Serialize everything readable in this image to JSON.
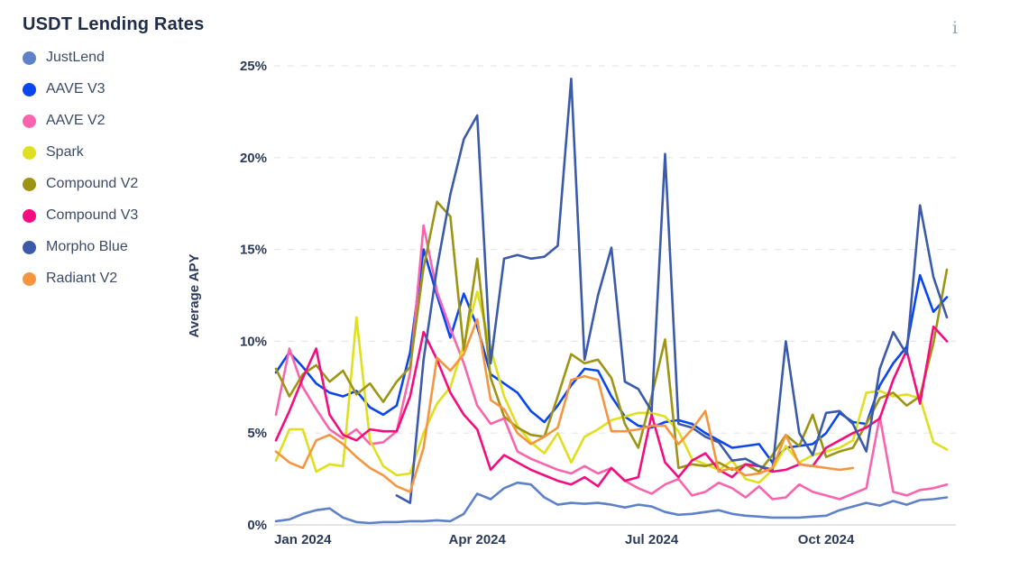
{
  "header": {
    "title": "USDT Lending Rates",
    "info_icon": "i"
  },
  "legend": [
    {
      "label": "JustLend",
      "color": "#5e81c9"
    },
    {
      "label": "AAVE V3",
      "color": "#0a46f0"
    },
    {
      "label": "AAVE V2",
      "color": "#f864ad"
    },
    {
      "label": "Spark",
      "color": "#e0df1f"
    },
    {
      "label": "Compound V2",
      "color": "#9d9413"
    },
    {
      "label": "Compound V3",
      "color": "#f50c7f"
    },
    {
      "label": "Morpho Blue",
      "color": "#3b5aa9"
    },
    {
      "label": "Radiant V2",
      "color": "#f6953f"
    }
  ],
  "axis": {
    "y_label": "Average APY",
    "y_tick_labels": [
      "0%",
      "5%",
      "10%",
      "15%",
      "20%",
      "25%"
    ],
    "x_tick_labels": [
      "Jan 2024",
      "Apr 2024",
      "Jul 2024",
      "Oct 2024"
    ]
  },
  "chart_data": {
    "type": "line",
    "title": "USDT Lending Rates",
    "ylabel": "Average APY",
    "ylim": [
      0,
      25
    ],
    "y_ticks": [
      0,
      5,
      10,
      15,
      20,
      25
    ],
    "grid": "horizontal-dashed",
    "legend_position": "left",
    "x_unit": "week (mid-Dec 2023 to early-Dec 2024, 51 weekly points)",
    "x_tick_week_index": [
      2,
      15,
      28,
      41
    ],
    "x_tick_labels": [
      "Jan 2024",
      "Apr 2024",
      "Jul 2024",
      "Oct 2024"
    ],
    "series": [
      {
        "name": "JustLend",
        "color": "#5e81c9",
        "values": [
          0.2,
          0.3,
          0.6,
          0.8,
          0.9,
          0.4,
          0.15,
          0.1,
          0.15,
          0.15,
          0.2,
          0.2,
          0.25,
          0.2,
          0.6,
          1.7,
          1.4,
          2.0,
          2.3,
          2.2,
          1.5,
          1.1,
          1.2,
          1.15,
          1.2,
          1.1,
          0.95,
          1.1,
          1.0,
          0.7,
          0.55,
          0.6,
          0.7,
          0.8,
          0.6,
          0.5,
          0.45,
          0.4,
          0.4,
          0.4,
          0.45,
          0.5,
          0.8,
          1.0,
          1.2,
          1.05,
          1.3,
          1.1,
          1.35,
          1.4,
          1.5
        ]
      },
      {
        "name": "AAVE V3",
        "color": "#0a46f0",
        "values": [
          8.3,
          9.4,
          8.6,
          7.7,
          7.2,
          7.0,
          7.3,
          6.4,
          6.0,
          6.5,
          9.4,
          15.0,
          12.5,
          10.2,
          12.6,
          10.8,
          8.2,
          7.7,
          7.2,
          6.2,
          5.6,
          6.5,
          7.6,
          8.5,
          8.4,
          7.0,
          5.9,
          5.4,
          5.3,
          5.6,
          5.7,
          5.5,
          5.0,
          4.6,
          4.2,
          4.3,
          4.4,
          3.4,
          4.2,
          4.3,
          4.4,
          5.0,
          6.1,
          5.6,
          5.5,
          7.6,
          8.8,
          9.7,
          13.6,
          11.6,
          12.4
        ]
      },
      {
        "name": "AAVE V2",
        "color": "#f864ad",
        "values": [
          6.0,
          9.6,
          7.5,
          6.3,
          5.2,
          4.7,
          5.2,
          4.4,
          4.5,
          5.1,
          8.3,
          16.3,
          12.7,
          10.7,
          8.8,
          6.5,
          5.5,
          5.8,
          4.0,
          3.6,
          3.3,
          3.0,
          2.8,
          3.2,
          2.8,
          3.1,
          2.4,
          2.0,
          1.7,
          2.2,
          2.5,
          1.6,
          1.8,
          2.3,
          2.0,
          1.5,
          2.1,
          1.4,
          1.5,
          2.2,
          1.8,
          1.6,
          1.4,
          1.7,
          2.0,
          5.9,
          1.8,
          1.6,
          1.9,
          2.0,
          2.2
        ]
      },
      {
        "name": "Spark",
        "color": "#e0df1f",
        "values": [
          3.5,
          5.2,
          5.2,
          2.9,
          3.3,
          3.2,
          11.3,
          4.6,
          3.2,
          2.7,
          2.8,
          5.0,
          6.6,
          7.5,
          9.8,
          12.7,
          9.6,
          7.0,
          5.4,
          4.5,
          3.9,
          5.0,
          3.4,
          4.8,
          5.2,
          5.7,
          5.9,
          6.1,
          6.1,
          5.9,
          5.1,
          3.6,
          3.3,
          3.0,
          3.5,
          2.5,
          2.3,
          3.0,
          4.3,
          3.4,
          3.8,
          4.0,
          4.2,
          4.6,
          7.2,
          7.3,
          7.0,
          7.1,
          6.9,
          4.5,
          4.1
        ]
      },
      {
        "name": "Compound V2",
        "color": "#9d9413",
        "values": [
          8.5,
          7.0,
          8.2,
          8.7,
          7.8,
          8.4,
          7.1,
          7.7,
          6.7,
          7.8,
          8.6,
          14.0,
          17.6,
          16.8,
          9.5,
          14.5,
          8.0,
          5.9,
          5.3,
          4.9,
          4.8,
          7.0,
          9.3,
          8.8,
          9.0,
          8.0,
          5.5,
          4.2,
          7.0,
          10.1,
          3.1,
          3.3,
          3.2,
          3.4,
          3.0,
          3.3,
          2.9,
          3.8,
          4.9,
          4.3,
          6.0,
          3.7,
          4.0,
          4.2,
          5.5,
          6.9,
          7.2,
          6.5,
          7.0,
          9.9,
          13.9
        ]
      },
      {
        "name": "Compound V3",
        "color": "#f50c7f",
        "values": [
          4.6,
          6.2,
          8.0,
          9.6,
          6.0,
          4.9,
          4.6,
          5.2,
          5.1,
          5.1,
          7.0,
          10.5,
          9.0,
          7.2,
          6.0,
          5.2,
          3.0,
          3.8,
          3.4,
          3.0,
          2.7,
          2.4,
          2.2,
          2.6,
          2.1,
          3.1,
          2.4,
          2.6,
          6.0,
          3.4,
          2.6,
          3.5,
          3.9,
          3.0,
          2.6,
          3.3,
          3.2,
          2.9,
          3.0,
          3.3,
          3.2,
          4.2,
          4.6,
          5.0,
          5.3,
          5.8,
          7.9,
          9.5,
          6.6,
          10.8,
          10.0
        ]
      },
      {
        "name": "Morpho Blue",
        "color": "#3b5aa9",
        "values": [
          null,
          null,
          null,
          null,
          null,
          null,
          null,
          null,
          null,
          1.6,
          1.2,
          9.0,
          14.0,
          18.0,
          21.0,
          22.3,
          8.8,
          14.5,
          14.7,
          14.5,
          14.6,
          15.2,
          24.3,
          9.0,
          12.5,
          15.1,
          7.8,
          7.4,
          6.2,
          20.2,
          5.5,
          5.3,
          4.8,
          4.5,
          3.5,
          3.6,
          3.2,
          3.0,
          10.0,
          5.0,
          3.8,
          6.1,
          6.2,
          5.5,
          4.0,
          8.5,
          10.5,
          9.3,
          17.4,
          13.5,
          11.3
        ]
      },
      {
        "name": "Radiant V2",
        "color": "#f6953f",
        "values": [
          4.0,
          3.4,
          3.1,
          4.6,
          4.9,
          4.4,
          3.7,
          3.1,
          2.7,
          2.1,
          1.8,
          4.2,
          9.1,
          8.4,
          9.3,
          11.2,
          6.8,
          6.3,
          5.0,
          4.4,
          4.8,
          5.3,
          7.9,
          8.1,
          7.9,
          5.1,
          5.1,
          5.2,
          5.4,
          5.4,
          4.4,
          5.2,
          6.2,
          2.9,
          3.1,
          2.7,
          2.8,
          3.1,
          4.9,
          3.3,
          3.2,
          3.1,
          3.0,
          3.1,
          null,
          null,
          null,
          null,
          null,
          null,
          null
        ]
      }
    ]
  }
}
